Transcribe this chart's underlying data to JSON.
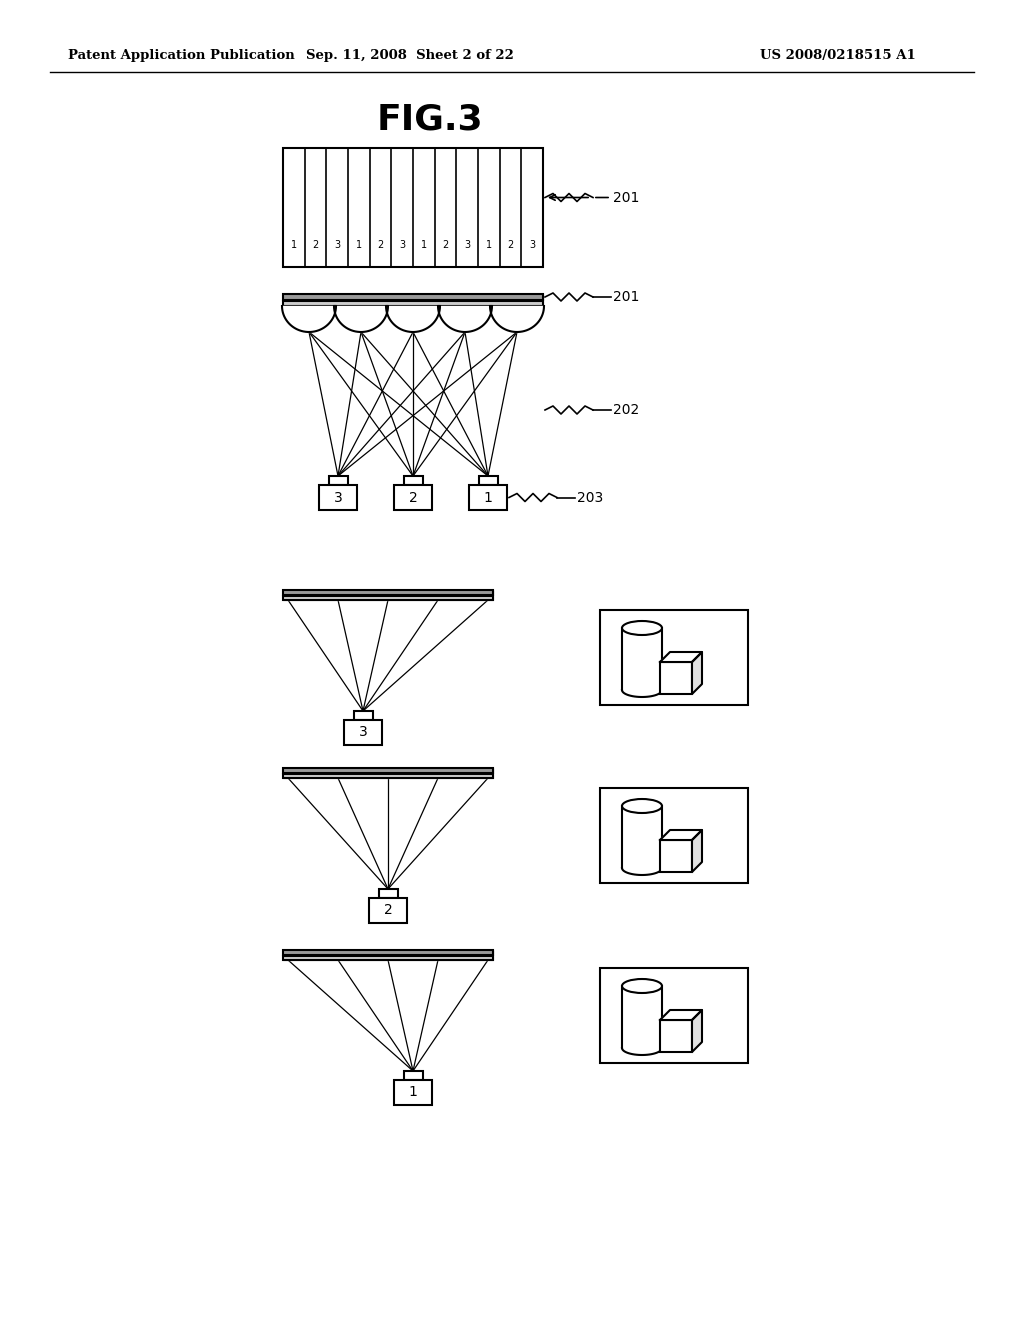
{
  "title": "FIG.3",
  "header_left": "Patent Application Publication",
  "header_mid": "Sep. 11, 2008  Sheet 2 of 22",
  "header_right": "US 2008/0218515 A1",
  "bg_color": "#ffffff",
  "line_color": "#000000",
  "label_201_top": "201",
  "label_201_mid": "201",
  "label_202": "202",
  "label_203": "203",
  "stripe_labels": [
    "1",
    "2",
    "3",
    "1",
    "2",
    "3",
    "1",
    "2",
    "3",
    "1",
    "2",
    "3"
  ],
  "viewbox_labels_bottom": [
    "3",
    "2",
    "1"
  ],
  "sub_viewer_labels": [
    "3",
    "2",
    "1"
  ]
}
